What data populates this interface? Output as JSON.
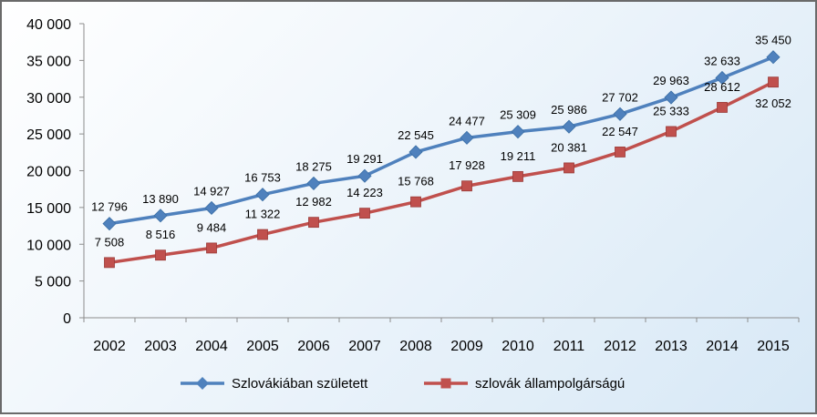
{
  "chart_data": {
    "type": "line",
    "title": "",
    "xlabel": "",
    "ylabel": "",
    "x": [
      "2002",
      "2003",
      "2004",
      "2005",
      "2006",
      "2007",
      "2008",
      "2009",
      "2010",
      "2011",
      "2012",
      "2013",
      "2014",
      "2015"
    ],
    "ylim": [
      0,
      40000
    ],
    "y_ticks": [
      "0",
      "5 000",
      "10 000",
      "15 000",
      "20 000",
      "25 000",
      "30 000",
      "35 000",
      "40 000"
    ],
    "grid": false,
    "legend_position": "bottom",
    "series": [
      {
        "name": "Szlovákiában született",
        "color": "#4f81bd",
        "marker": "diamond",
        "values": [
          12796,
          13890,
          14927,
          16753,
          18275,
          19291,
          22545,
          24477,
          25309,
          25986,
          27702,
          29963,
          32633,
          35450
        ],
        "labels": [
          "12 796",
          "13 890",
          "14 927",
          "16 753",
          "18 275",
          "19 291",
          "22 545",
          "24 477",
          "25 309",
          "25 986",
          "27 702",
          "29 963",
          "32 633",
          "35 450"
        ]
      },
      {
        "name": "szlovák állampolgárságú",
        "color": "#c0504d",
        "marker": "square",
        "values": [
          7508,
          8516,
          9484,
          11322,
          12982,
          14223,
          15768,
          17928,
          19211,
          20381,
          22547,
          25333,
          28612,
          32052
        ],
        "labels": [
          "7 508",
          "8 516",
          "9 484",
          "11 322",
          "12 982",
          "14 223",
          "15 768",
          "17 928",
          "19 211",
          "20 381",
          "22 547",
          "25 333",
          "28 612",
          "32 052"
        ]
      }
    ]
  }
}
